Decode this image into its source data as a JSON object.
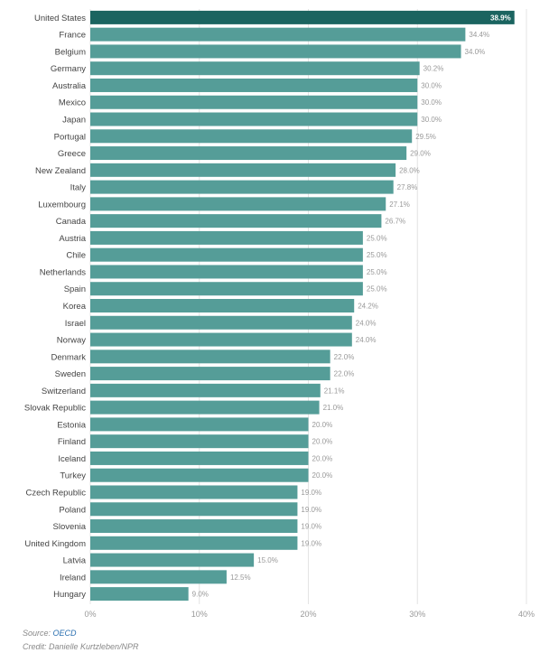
{
  "chart_data": {
    "type": "bar",
    "orientation": "horizontal",
    "categories": [
      "United States",
      "France",
      "Belgium",
      "Germany",
      "Australia",
      "Mexico",
      "Japan",
      "Portugal",
      "Greece",
      "New Zealand",
      "Italy",
      "Luxembourg",
      "Canada",
      "Austria",
      "Chile",
      "Netherlands",
      "Spain",
      "Korea",
      "Israel",
      "Norway",
      "Denmark",
      "Sweden",
      "Switzerland",
      "Slovak Republic",
      "Estonia",
      "Finland",
      "Iceland",
      "Turkey",
      "Czech Republic",
      "Poland",
      "Slovenia",
      "United Kingdom",
      "Latvia",
      "Ireland",
      "Hungary"
    ],
    "values": [
      38.9,
      34.4,
      34.0,
      30.2,
      30.0,
      30.0,
      30.0,
      29.5,
      29.0,
      28.0,
      27.8,
      27.1,
      26.7,
      25.0,
      25.0,
      25.0,
      25.0,
      24.2,
      24.0,
      24.0,
      22.0,
      22.0,
      21.1,
      21.0,
      20.0,
      20.0,
      20.0,
      20.0,
      19.0,
      19.0,
      19.0,
      19.0,
      15.0,
      12.5,
      9.0
    ],
    "value_labels": [
      "38.9%",
      "34.4%",
      "34.0%",
      "30.2%",
      "30.0%",
      "30.0%",
      "30.0%",
      "29.5%",
      "29.0%",
      "28.0%",
      "27.8%",
      "27.1%",
      "26.7%",
      "25.0%",
      "25.0%",
      "25.0%",
      "25.0%",
      "24.2%",
      "24.0%",
      "24.0%",
      "22.0%",
      "22.0%",
      "21.1%",
      "21.0%",
      "20.0%",
      "20.0%",
      "20.0%",
      "20.0%",
      "19.0%",
      "19.0%",
      "19.0%",
      "19.0%",
      "15.0%",
      "12.5%",
      "9.0%"
    ],
    "xlim": [
      0,
      40
    ],
    "xticks": [
      0,
      10,
      20,
      30,
      40
    ],
    "xtick_labels": [
      "0%",
      "10%",
      "20%",
      "30%",
      "40%"
    ],
    "highlight_index": 0,
    "grid": true
  },
  "colors": {
    "bar": "#559d98",
    "highlight": "#1b6460",
    "grid": "#e4e4e4",
    "label": "#444444",
    "value": "#999999",
    "highlight_value": "#ffffff",
    "axis": "#999999"
  },
  "footer": {
    "source_prefix": "Source: ",
    "source_link": "OECD",
    "credit": "Credit: Danielle Kurtzleben/NPR"
  }
}
